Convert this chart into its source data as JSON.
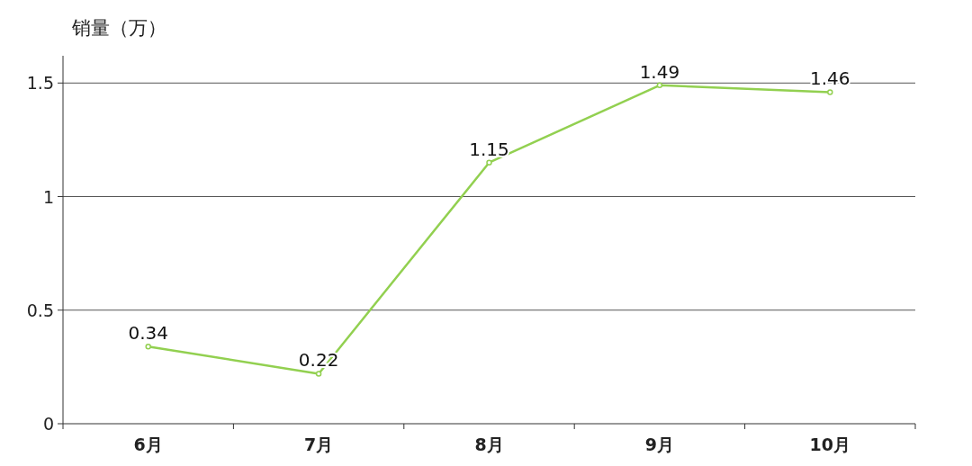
{
  "chart_data": {
    "type": "line",
    "ylabel": "销量（万）",
    "categories": [
      "6月",
      "7月",
      "8月",
      "9月",
      "10月"
    ],
    "series": [
      {
        "color": "#92d050",
        "values": [
          0.34,
          0.22,
          1.15,
          1.49,
          1.46
        ]
      }
    ],
    "ylim": [
      0,
      1.62
    ],
    "yticks": [
      0,
      0.5,
      1,
      1.5
    ],
    "grid": "y",
    "marker": "circle",
    "line_style": "solid",
    "data_labels": true
  }
}
